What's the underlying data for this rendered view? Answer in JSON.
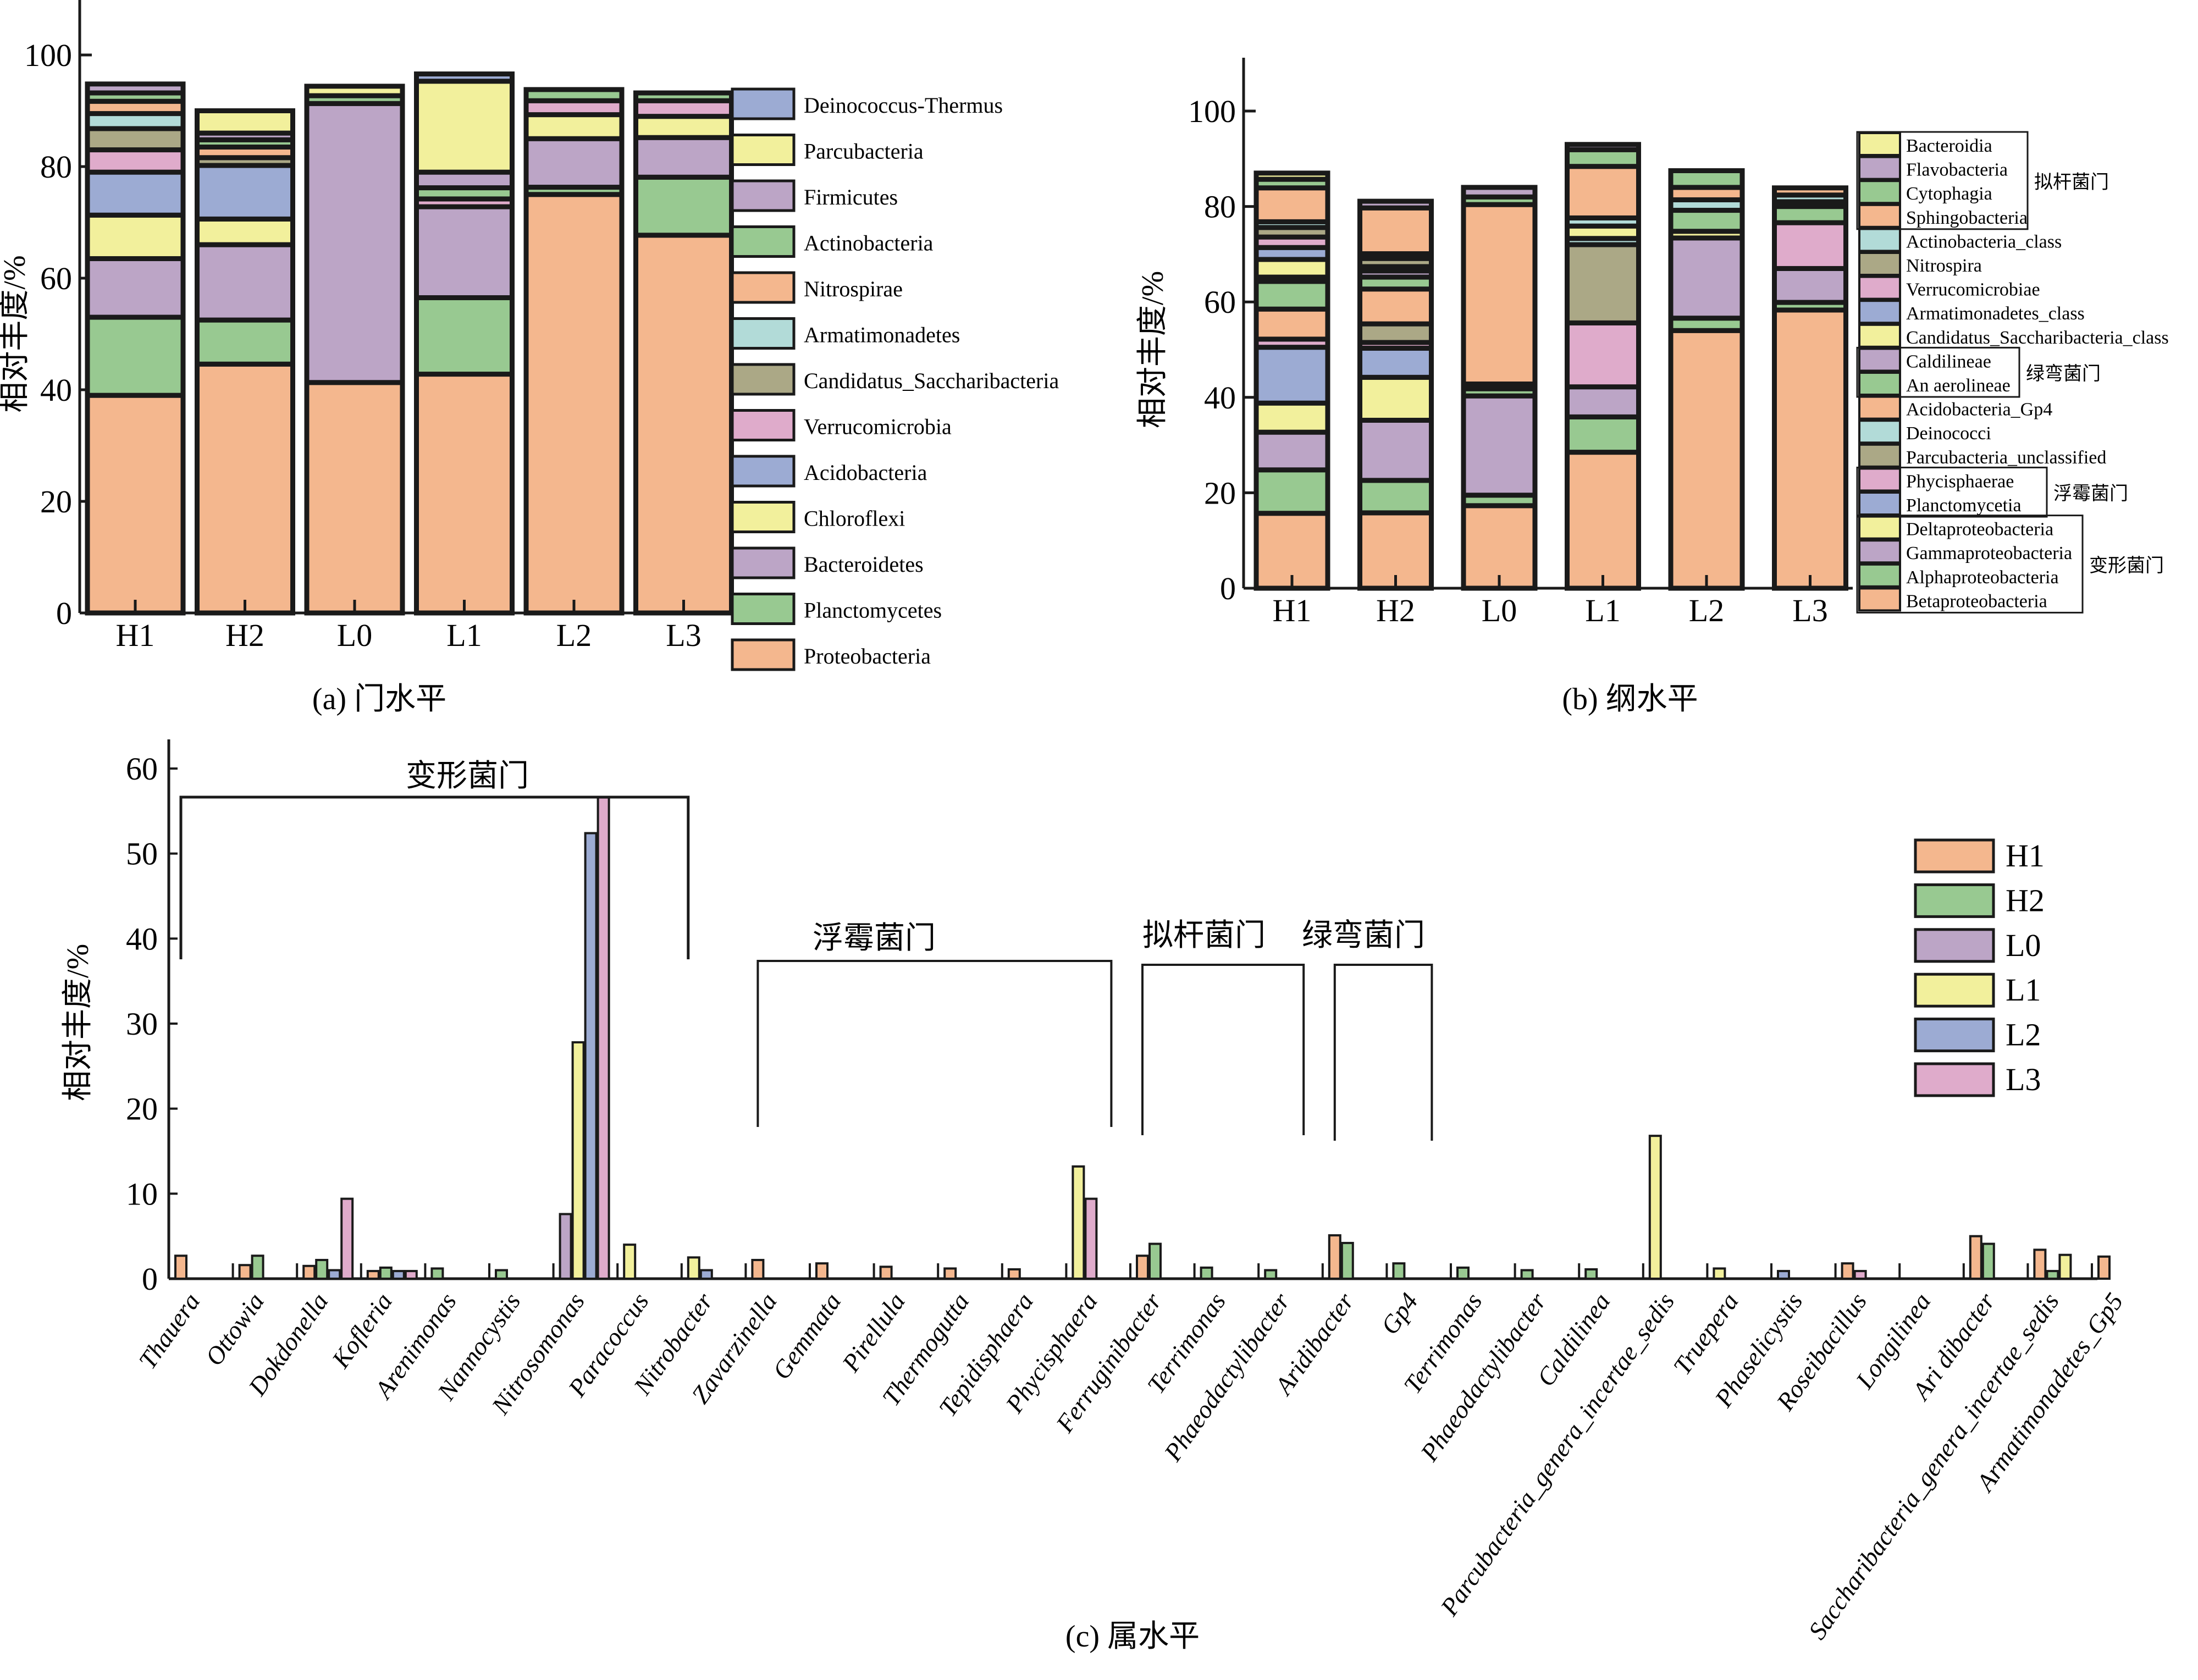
{
  "colors": {
    "orange": "#f4b78e",
    "green": "#98c991",
    "purple": "#bca5c6",
    "yellow": "#f2f09c",
    "blue": "#9cabd3",
    "pink": "#dfabcb",
    "olive": "#aba886",
    "cyan": "#b2dbd8",
    "stroke": "#1a1a1a"
  },
  "chart_data": [
    {
      "id": "a",
      "type": "bar",
      "stacked": true,
      "caption": "(a) 门水平",
      "ylabel": "相对丰度/%",
      "xlabel": "",
      "ylim": [
        0,
        110
      ],
      "yticks": [
        0,
        20,
        40,
        60,
        80,
        100
      ],
      "categories": [
        "H1",
        "H2",
        "L0",
        "L1",
        "L2",
        "L3"
      ],
      "legend_position": "right",
      "legend_order_top_to_bottom": [
        "Deinococcus-Thermus",
        "Parcubacteria",
        "Firmicutes",
        "Actinobacteria",
        "Nitrospirae",
        "Armatimonadetes",
        "Candidatus_Saccharibacteria",
        "Verrucomicrobia",
        "Acidobacteria",
        "Chloroflexi",
        "Bacteroidetes",
        "Planctomycetes",
        "Proteobacteria"
      ],
      "series": [
        {
          "name": "Proteobacteria",
          "color": "orange",
          "values": [
            39.0,
            44.6,
            41.3,
            42.8,
            75.0,
            67.7
          ]
        },
        {
          "name": "Planctomycetes",
          "color": "green",
          "values": [
            14.0,
            7.9,
            0,
            13.7,
            1.3,
            10.4
          ]
        },
        {
          "name": "Bacteroidetes",
          "color": "purple",
          "values": [
            10.5,
            13.5,
            50.0,
            16.3,
            8.7,
            7.1
          ]
        },
        {
          "name": "Chloroflexi",
          "color": "yellow",
          "values": [
            7.8,
            4.6,
            0,
            0,
            4.3,
            3.8
          ]
        },
        {
          "name": "Acidobacteria",
          "color": "blue",
          "values": [
            7.7,
            9.6,
            0,
            0,
            0,
            0
          ]
        },
        {
          "name": "Verrucomicrobia",
          "color": "pink",
          "values": [
            4.0,
            0,
            0,
            1.4,
            2.5,
            2.8
          ]
        },
        {
          "name": "Candidatus_Saccharibacteria",
          "color": "olive",
          "values": [
            3.8,
            1.4,
            0,
            0,
            0,
            0
          ]
        },
        {
          "name": "Armatimonadetes",
          "color": "cyan",
          "values": [
            2.7,
            0,
            0,
            0,
            0,
            0
          ]
        },
        {
          "name": "Nitrospirae",
          "color": "orange",
          "values": [
            2.2,
            1.9,
            0,
            0,
            0,
            0
          ]
        },
        {
          "name": "Actinobacteria",
          "color": "green",
          "values": [
            1.5,
            1.3,
            1.4,
            2.0,
            2.0,
            1.4
          ]
        },
        {
          "name": "Firmicutes",
          "color": "purple",
          "values": [
            1.6,
            1.2,
            0,
            2.8,
            0,
            0
          ]
        },
        {
          "name": "Parcubacteria",
          "color": "yellow",
          "values": [
            0,
            4.0,
            1.7,
            16.3,
            0,
            0
          ]
        },
        {
          "name": "Deinococcus-Thermus",
          "color": "blue",
          "values": [
            0,
            0,
            0,
            1.3,
            0,
            0
          ]
        }
      ]
    },
    {
      "id": "b",
      "type": "bar",
      "stacked": true,
      "caption": "(b) 纲水平",
      "ylabel": "相对丰度/%",
      "xlabel": "",
      "ylim": [
        0,
        110
      ],
      "yticks": [
        0,
        20,
        40,
        60,
        80,
        100
      ],
      "categories": [
        "H1",
        "H2",
        "L0",
        "L1",
        "L2",
        "L3"
      ],
      "legend_position": "right",
      "legend": [
        {
          "name": "Bacteroidia",
          "color": "yellow"
        },
        {
          "name": "Flavobacteria",
          "color": "purple"
        },
        {
          "name": "Cytophagia",
          "color": "green"
        },
        {
          "name": "Sphingobacteria",
          "color": "orange"
        },
        {
          "name": "Actinobacteria_class",
          "color": "cyan"
        },
        {
          "name": "Nitrospira",
          "color": "olive"
        },
        {
          "name": "Verrucomicrobiae",
          "color": "pink"
        },
        {
          "name": "Armatimonadetes_class",
          "color": "blue"
        },
        {
          "name": "Candidatus_Saccharibacteria_class",
          "color": "yellow"
        },
        {
          "name": "Caldilineae",
          "color": "purple"
        },
        {
          "name": "An aerolineae",
          "color": "green"
        },
        {
          "name": "Acidobacteria_Gp4",
          "color": "orange"
        },
        {
          "name": "Deinococci",
          "color": "cyan"
        },
        {
          "name": "Parcubacteria_unclassified",
          "color": "olive"
        },
        {
          "name": "Phycisphaerae",
          "color": "pink"
        },
        {
          "name": "Planctomycetia",
          "color": "blue"
        },
        {
          "name": "Deltaproteobacteria",
          "color": "yellow"
        },
        {
          "name": "Gammaproteobacteria",
          "color": "purple"
        },
        {
          "name": "Alphaproteobacteria",
          "color": "green"
        },
        {
          "name": "Betaproteobacteria",
          "color": "orange"
        }
      ],
      "legend_groups": [
        {
          "label": "拟杆菌门",
          "members": [
            "Bacteroidia",
            "Flavobacteria",
            "Cytophagia",
            "Sphingobacteria"
          ]
        },
        {
          "label": "绿弯菌门",
          "members": [
            "Caldilineae",
            "An aerolineae"
          ]
        },
        {
          "label": "浮霉菌门",
          "members": [
            "Phycisphaerae",
            "Planctomycetia"
          ]
        },
        {
          "label": "变形菌门",
          "members": [
            "Deltaproteobacteria",
            "Gammaproteobacteria",
            "Alphaproteobacteria",
            "Betaproteobacteria"
          ]
        }
      ],
      "series": [
        {
          "name": "Betaproteobacteria",
          "color": "orange",
          "values": [
            15.7,
            15.8,
            17.3,
            28.5,
            54.0,
            58.3
          ]
        },
        {
          "name": "Alphaproteobacteria",
          "color": "green",
          "values": [
            9.1,
            6.8,
            2.2,
            7.4,
            2.6,
            1.6
          ]
        },
        {
          "name": "Gammaproteobacteria",
          "color": "purple",
          "values": [
            7.9,
            12.6,
            20.8,
            6.3,
            16.8,
            7.1
          ]
        },
        {
          "name": "Deltaproteobacteria",
          "color": "yellow",
          "values": [
            6.1,
            9.0,
            0,
            0,
            1.4,
            0
          ]
        },
        {
          "name": "Planctomycetia",
          "color": "blue",
          "values": [
            11.7,
            6.1,
            0,
            0,
            0,
            0
          ]
        },
        {
          "name": "Phycisphaerae",
          "color": "pink",
          "values": [
            1.7,
            1.2,
            0,
            13.4,
            0,
            9.6
          ]
        },
        {
          "name": "Parcubacteria_unclassified",
          "color": "olive",
          "values": [
            0,
            3.9,
            0,
            16.4,
            0,
            0
          ]
        },
        {
          "name": "Deinococci",
          "color": "cyan",
          "values": [
            0,
            0,
            0,
            1.3,
            0,
            0
          ]
        },
        {
          "name": "Acidobacteria_Gp4",
          "color": "orange",
          "values": [
            6.3,
            7.3,
            0,
            0,
            0,
            0
          ]
        },
        {
          "name": "An aerolineae",
          "color": "green",
          "values": [
            5.8,
            2.5,
            1.5,
            0,
            4.4,
            3.4
          ]
        },
        {
          "name": "Caldilineae",
          "color": "purple",
          "values": [
            0.9,
            1.3,
            0,
            0,
            0,
            0
          ]
        },
        {
          "name": "Candidatus_Saccharibacteria_class",
          "color": "yellow",
          "values": [
            3.7,
            0.9,
            0,
            2.6,
            0,
            0
          ]
        },
        {
          "name": "Armatimonadetes_class",
          "color": "blue",
          "values": [
            2.5,
            0,
            0,
            0,
            0,
            0
          ]
        },
        {
          "name": "Verrucomicrobiae",
          "color": "pink",
          "values": [
            2.2,
            0,
            0,
            0,
            0,
            1.0
          ]
        },
        {
          "name": "Nitrospira",
          "color": "olive",
          "values": [
            2.0,
            1.7,
            0,
            0,
            0,
            0
          ]
        },
        {
          "name": "Actinobacteria_class",
          "color": "cyan",
          "values": [
            1.2,
            1.0,
            1.0,
            1.7,
            2.2,
            1.4
          ]
        },
        {
          "name": "Sphingobacteria",
          "color": "orange",
          "values": [
            7.1,
            9.6,
            37.6,
            10.8,
            2.6,
            1.5
          ]
        },
        {
          "name": "Cytophagia",
          "color": "green",
          "values": [
            1.8,
            0,
            1.6,
            3.5,
            3.5,
            0
          ]
        },
        {
          "name": "Flavobacteria",
          "color": "purple",
          "values": [
            0,
            1.4,
            2.0,
            1.1,
            0,
            0
          ]
        },
        {
          "name": "Bacteroidia",
          "color": "yellow",
          "values": [
            1.3,
            0,
            0,
            0,
            0,
            0
          ]
        }
      ]
    },
    {
      "id": "c",
      "type": "bar",
      "stacked": false,
      "caption": "(c) 属水平",
      "ylabel": "相对丰度/%",
      "xlabel": "",
      "ylim": [
        0,
        65
      ],
      "yticks": [
        0,
        10,
        20,
        30,
        40,
        50,
        60
      ],
      "legend_position": "top-right",
      "categories": [
        "Thauera",
        "Ottowia",
        "Dokdonella",
        "Kofleria",
        "Arenimonas",
        "Nannocystis",
        "Nitrosomonas",
        "Paracoccus",
        "Nitrobacter",
        "Zavarzinella",
        "Gemmata",
        "Pirellula",
        "Thermogutta",
        "Tepidisphaera",
        "Phycisphaera",
        "Ferruginibacter",
        "Terrimonas",
        "Phaeodactylibacter",
        "Aridibacter",
        "Gp4",
        "Terrimonas",
        "Phaeodactylibacter",
        "Caldilinea",
        "Parcubacteria_genera_incertae_sedis",
        "Truepera",
        "Phaselicystis",
        "Roseibacillus",
        "Longilinea",
        "Ari dibacter",
        "Saccharibacteria_genera_incertae_sedis",
        "Armatimonadetes_Gp5"
      ],
      "group_annotations": [
        {
          "label": "变形菌门",
          "from": "Thauera",
          "to": "Nitrobacter"
        },
        {
          "label": "浮霉菌门",
          "from": "Zavarzinella",
          "to": "Phycisphaera"
        },
        {
          "label": "拟杆菌门",
          "from": "Ferruginibacter",
          "to": "Phaeodactylibacter"
        },
        {
          "label": "绿弯菌门",
          "from": "Aridibacter",
          "to": "Gp4"
        }
      ],
      "series": [
        {
          "name": "H1",
          "color": "orange",
          "values": [
            2.7,
            1.6,
            1.5,
            0.9,
            0,
            0,
            0,
            0,
            0,
            2.2,
            1.8,
            1.4,
            1.2,
            1.1,
            0,
            2.7,
            0,
            0,
            5.1,
            0,
            0,
            0,
            0,
            0,
            0,
            0,
            1.8,
            0,
            5.0,
            3.4,
            2.6
          ]
        },
        {
          "name": "H2",
          "color": "green",
          "values": [
            0,
            2.7,
            2.2,
            1.3,
            1.2,
            1.0,
            0,
            0,
            0,
            0,
            0,
            0,
            0,
            0,
            0,
            4.1,
            1.3,
            1.0,
            4.2,
            1.8,
            1.3,
            1.0,
            1.1,
            0,
            0,
            0,
            0,
            0,
            4.1,
            0.9,
            0
          ]
        },
        {
          "name": "L0",
          "color": "purple",
          "values": [
            0,
            0,
            0,
            0,
            0,
            0,
            7.6,
            0,
            0,
            0,
            0,
            0,
            0,
            0,
            0,
            0,
            0,
            0,
            0,
            0,
            0,
            0,
            0,
            0,
            0,
            0,
            0,
            0,
            0,
            0,
            0
          ]
        },
        {
          "name": "L1",
          "color": "yellow",
          "values": [
            0,
            0,
            0,
            0,
            0,
            0,
            27.8,
            4.0,
            2.5,
            0,
            0,
            0,
            0,
            0,
            13.2,
            0,
            0,
            0,
            0,
            0,
            0,
            0,
            0,
            16.8,
            1.2,
            0,
            0,
            0,
            0,
            2.8,
            0
          ]
        },
        {
          "name": "L2",
          "color": "blue",
          "values": [
            0,
            0,
            1.0,
            0.9,
            0,
            0,
            52.4,
            0,
            1.0,
            0,
            0,
            0,
            0,
            0,
            0,
            0,
            0,
            0,
            0,
            0,
            0,
            0,
            0,
            0,
            0,
            0.9,
            0,
            0,
            0,
            0,
            0
          ]
        },
        {
          "name": "L3",
          "color": "pink",
          "values": [
            0,
            0,
            9.4,
            0.9,
            0,
            0,
            56.6,
            0,
            0,
            0,
            0,
            0,
            0,
            0,
            9.4,
            0,
            0,
            0,
            0,
            0,
            0,
            0,
            0,
            0,
            0,
            0,
            0.9,
            0,
            0,
            0,
            0
          ]
        }
      ]
    }
  ]
}
